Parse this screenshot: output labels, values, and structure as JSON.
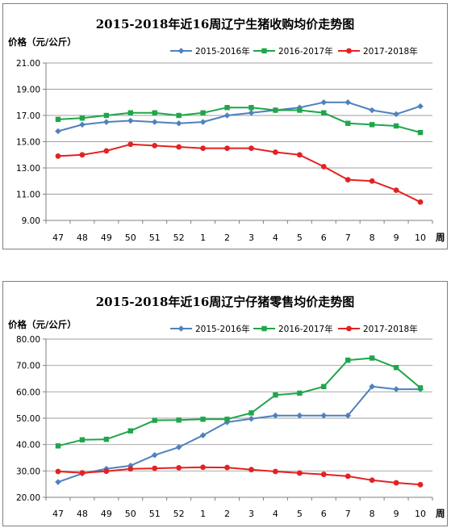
{
  "colors": {
    "series_2015_2016": "#4f81bd",
    "series_2016_2017": "#1fa64a",
    "series_2017_2018": "#e32222",
    "axis": "#7f7f7f",
    "grid": "#9f9f9f"
  },
  "chart_data": [
    {
      "type": "line",
      "title": "2015-2018年近16周辽宁生猪收购均价走势图",
      "ylabel": "价格（元/公斤）",
      "xlabel": "周",
      "categories": [
        "47",
        "48",
        "49",
        "50",
        "51",
        "52",
        "1",
        "2",
        "3",
        "4",
        "5",
        "6",
        "7",
        "8",
        "9",
        "10"
      ],
      "yticks": [
        "9.00",
        "11.00",
        "13.00",
        "15.00",
        "17.00",
        "19.00",
        "21.00"
      ],
      "ylim": [
        9,
        21
      ],
      "grid": true,
      "legend_position": "top-right",
      "series": [
        {
          "name": "2015-2016年",
          "color": "#4f81bd",
          "marker": "diamond",
          "values": [
            15.8,
            16.3,
            16.5,
            16.6,
            16.5,
            16.4,
            16.5,
            17.0,
            17.2,
            17.4,
            17.6,
            18.0,
            18.0,
            17.4,
            17.1,
            17.7
          ]
        },
        {
          "name": "2016-2017年",
          "color": "#1fa64a",
          "marker": "square",
          "values": [
            16.7,
            16.8,
            17.0,
            17.2,
            17.2,
            17.0,
            17.2,
            17.6,
            17.6,
            17.4,
            17.4,
            17.2,
            16.4,
            16.3,
            16.2,
            15.7
          ]
        },
        {
          "name": "2017-2018年",
          "color": "#e32222",
          "marker": "circle",
          "values": [
            13.9,
            14.0,
            14.3,
            14.8,
            14.7,
            14.6,
            14.5,
            14.5,
            14.5,
            14.2,
            14.0,
            13.1,
            12.1,
            12.0,
            11.3,
            10.4
          ]
        }
      ]
    },
    {
      "type": "line",
      "title": "2015-2018年近16周辽宁仔猪零售均价走势图",
      "ylabel": "价格（元/公斤）",
      "xlabel": "周",
      "categories": [
        "47",
        "48",
        "49",
        "50",
        "51",
        "52",
        "1",
        "2",
        "3",
        "4",
        "5",
        "6",
        "7",
        "8",
        "9",
        "10"
      ],
      "yticks": [
        "20.00",
        "30.00",
        "40.00",
        "50.00",
        "60.00",
        "70.00",
        "80.00"
      ],
      "ylim": [
        20,
        80
      ],
      "grid": true,
      "legend_position": "top-right",
      "series": [
        {
          "name": "2015-2016年",
          "color": "#4f81bd",
          "marker": "diamond",
          "values": [
            25.8,
            29.0,
            30.8,
            32.0,
            36.0,
            39.0,
            43.5,
            48.5,
            49.8,
            51.0,
            51.0,
            51.0,
            51.0,
            62.0,
            61.0,
            61.0
          ]
        },
        {
          "name": "2016-2017年",
          "color": "#1fa64a",
          "marker": "square",
          "values": [
            39.5,
            41.8,
            42.0,
            45.2,
            49.2,
            49.3,
            49.6,
            49.6,
            52.0,
            58.8,
            59.5,
            62.0,
            72.0,
            72.8,
            69.2,
            61.5
          ]
        },
        {
          "name": "2017-2018年",
          "color": "#e32222",
          "marker": "circle",
          "values": [
            29.8,
            29.3,
            29.9,
            30.8,
            31.0,
            31.2,
            31.4,
            31.3,
            30.5,
            29.8,
            29.2,
            28.7,
            28.0,
            26.5,
            25.5,
            24.8
          ]
        }
      ]
    }
  ]
}
